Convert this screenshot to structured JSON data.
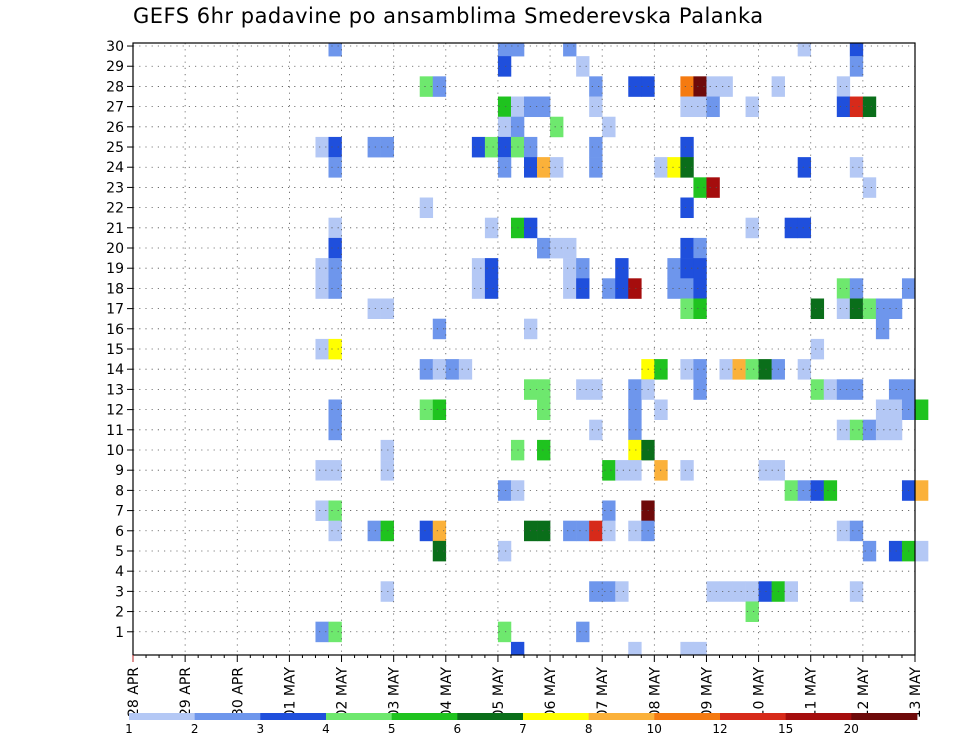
{
  "chart_data": {
    "type": "heatmap",
    "title": "GEFS 6hr padavine po ansamblima Smederevska Palanka",
    "y_ticks": [
      "1",
      "2",
      "3",
      "4",
      "5",
      "6",
      "7",
      "8",
      "9",
      "10",
      "11",
      "12",
      "13",
      "14",
      "15",
      "16",
      "17",
      "18",
      "19",
      "20",
      "21",
      "22",
      "23",
      "24",
      "25",
      "26",
      "27",
      "28",
      "29",
      "30"
    ],
    "ylim": [
      0,
      30
    ],
    "x_tick_labels": [
      "28 APR",
      "29 APR",
      "30 APR",
      "01 MAY",
      "02 MAY",
      "03 MAY",
      "04 MAY",
      "05 MAY",
      "06 MAY",
      "07 MAY",
      "08 MAY",
      "09 MAY",
      "10 MAY",
      "11 MAY",
      "12 MAY",
      "13 MAY"
    ],
    "time_steps": 60,
    "grid": true,
    "colorbar": {
      "labels": [
        "1",
        "2",
        "3",
        "4",
        "5",
        "6",
        "7",
        "8",
        "10",
        "12",
        "15",
        "20"
      ],
      "colors": [
        "#b4c8f5",
        "#6e96ec",
        "#1f4fdc",
        "#6ee86e",
        "#1fc31f",
        "#0a6e1a",
        "#ffff00",
        "#fbb13a",
        "#f57a10",
        "#d72a1a",
        "#a50d0d",
        "#6e0a0a"
      ]
    },
    "cells": [
      [
        15,
        30,
        2
      ],
      [
        28,
        30,
        2
      ],
      [
        29,
        30,
        2
      ],
      [
        33,
        30,
        2
      ],
      [
        51,
        30,
        1
      ],
      [
        55,
        30,
        3
      ],
      [
        28,
        29,
        3
      ],
      [
        34,
        29,
        1
      ],
      [
        55,
        29,
        2
      ],
      [
        22,
        28,
        4
      ],
      [
        23,
        28,
        2
      ],
      [
        35,
        28,
        2
      ],
      [
        38,
        28,
        3
      ],
      [
        39,
        28,
        3
      ],
      [
        42,
        28,
        9
      ],
      [
        43,
        28,
        12
      ],
      [
        44,
        28,
        1
      ],
      [
        45,
        28,
        1
      ],
      [
        49,
        28,
        1
      ],
      [
        54,
        28,
        1
      ],
      [
        28,
        27,
        5
      ],
      [
        29,
        27,
        1
      ],
      [
        30,
        27,
        2
      ],
      [
        31,
        27,
        2
      ],
      [
        35,
        27,
        1
      ],
      [
        42,
        27,
        1
      ],
      [
        43,
        27,
        1
      ],
      [
        44,
        27,
        2
      ],
      [
        47,
        27,
        1
      ],
      [
        54,
        27,
        3
      ],
      [
        55,
        27,
        10
      ],
      [
        56,
        27,
        6
      ],
      [
        28,
        26,
        1
      ],
      [
        29,
        26,
        2
      ],
      [
        32,
        26,
        4
      ],
      [
        36,
        26,
        1
      ],
      [
        14,
        25,
        1
      ],
      [
        15,
        25,
        3
      ],
      [
        18,
        25,
        2
      ],
      [
        19,
        25,
        2
      ],
      [
        26,
        25,
        3
      ],
      [
        27,
        25,
        4
      ],
      [
        28,
        25,
        3
      ],
      [
        29,
        25,
        4
      ],
      [
        30,
        25,
        2
      ],
      [
        35,
        25,
        2
      ],
      [
        42,
        25,
        3
      ],
      [
        15,
        24,
        2
      ],
      [
        28,
        24,
        2
      ],
      [
        30,
        24,
        3
      ],
      [
        31,
        24,
        8
      ],
      [
        32,
        24,
        1
      ],
      [
        35,
        24,
        2
      ],
      [
        40,
        24,
        1
      ],
      [
        41,
        24,
        7
      ],
      [
        42,
        24,
        6
      ],
      [
        51,
        24,
        3
      ],
      [
        55,
        24,
        1
      ],
      [
        43,
        23,
        5
      ],
      [
        44,
        23,
        11
      ],
      [
        56,
        23,
        1
      ],
      [
        22,
        22,
        1
      ],
      [
        42,
        22,
        3
      ],
      [
        15,
        21,
        1
      ],
      [
        27,
        21,
        1
      ],
      [
        29,
        21,
        5
      ],
      [
        30,
        21,
        3
      ],
      [
        47,
        21,
        1
      ],
      [
        50,
        21,
        3
      ],
      [
        51,
        21,
        3
      ],
      [
        15,
        20,
        3
      ],
      [
        31,
        20,
        2
      ],
      [
        32,
        20,
        1
      ],
      [
        33,
        20,
        1
      ],
      [
        42,
        20,
        3
      ],
      [
        43,
        20,
        2
      ],
      [
        14,
        19,
        1
      ],
      [
        15,
        19,
        2
      ],
      [
        26,
        19,
        1
      ],
      [
        27,
        19,
        3
      ],
      [
        33,
        19,
        1
      ],
      [
        34,
        19,
        2
      ],
      [
        37,
        19,
        3
      ],
      [
        41,
        19,
        2
      ],
      [
        42,
        19,
        3
      ],
      [
        43,
        19,
        3
      ],
      [
        14,
        18,
        1
      ],
      [
        15,
        18,
        2
      ],
      [
        26,
        18,
        1
      ],
      [
        27,
        18,
        3
      ],
      [
        33,
        18,
        1
      ],
      [
        34,
        18,
        3
      ],
      [
        36,
        18,
        2
      ],
      [
        37,
        18,
        3
      ],
      [
        38,
        18,
        11
      ],
      [
        41,
        18,
        2
      ],
      [
        42,
        18,
        2
      ],
      [
        43,
        18,
        3
      ],
      [
        54,
        18,
        4
      ],
      [
        55,
        18,
        2
      ],
      [
        59,
        18,
        2
      ],
      [
        18,
        17,
        1
      ],
      [
        19,
        17,
        1
      ],
      [
        42,
        17,
        4
      ],
      [
        43,
        17,
        5
      ],
      [
        52,
        17,
        6
      ],
      [
        54,
        17,
        1
      ],
      [
        55,
        17,
        6
      ],
      [
        56,
        17,
        4
      ],
      [
        57,
        17,
        2
      ],
      [
        58,
        17,
        2
      ],
      [
        23,
        16,
        2
      ],
      [
        30,
        16,
        1
      ],
      [
        57,
        16,
        2
      ],
      [
        14,
        15,
        1
      ],
      [
        15,
        15,
        7
      ],
      [
        52,
        15,
        1
      ],
      [
        22,
        14,
        2
      ],
      [
        23,
        14,
        1
      ],
      [
        24,
        14,
        2
      ],
      [
        25,
        14,
        1
      ],
      [
        39,
        14,
        7
      ],
      [
        40,
        14,
        5
      ],
      [
        42,
        14,
        1
      ],
      [
        43,
        14,
        2
      ],
      [
        45,
        14,
        1
      ],
      [
        46,
        14,
        8
      ],
      [
        47,
        14,
        4
      ],
      [
        48,
        14,
        6
      ],
      [
        49,
        14,
        2
      ],
      [
        51,
        14,
        1
      ],
      [
        30,
        13,
        4
      ],
      [
        31,
        13,
        4
      ],
      [
        34,
        13,
        1
      ],
      [
        35,
        13,
        1
      ],
      [
        38,
        13,
        2
      ],
      [
        39,
        13,
        1
      ],
      [
        43,
        13,
        2
      ],
      [
        52,
        13,
        4
      ],
      [
        53,
        13,
        1
      ],
      [
        54,
        13,
        2
      ],
      [
        55,
        13,
        2
      ],
      [
        58,
        13,
        2
      ],
      [
        59,
        13,
        2
      ],
      [
        15,
        12,
        2
      ],
      [
        22,
        12,
        4
      ],
      [
        23,
        12,
        5
      ],
      [
        31,
        12,
        4
      ],
      [
        38,
        12,
        2
      ],
      [
        40,
        12,
        1
      ],
      [
        57,
        12,
        1
      ],
      [
        58,
        12,
        1
      ],
      [
        59,
        12,
        2
      ],
      [
        60,
        12,
        5
      ],
      [
        15,
        11,
        2
      ],
      [
        35,
        11,
        1
      ],
      [
        38,
        11,
        2
      ],
      [
        54,
        11,
        1
      ],
      [
        55,
        11,
        4
      ],
      [
        56,
        11,
        2
      ],
      [
        57,
        11,
        1
      ],
      [
        58,
        11,
        1
      ],
      [
        19,
        10,
        1
      ],
      [
        29,
        10,
        4
      ],
      [
        31,
        10,
        5
      ],
      [
        38,
        10,
        7
      ],
      [
        39,
        10,
        6
      ],
      [
        14,
        9,
        1
      ],
      [
        15,
        9,
        1
      ],
      [
        19,
        9,
        1
      ],
      [
        36,
        9,
        5
      ],
      [
        37,
        9,
        1
      ],
      [
        38,
        9,
        1
      ],
      [
        40,
        9,
        8
      ],
      [
        42,
        9,
        1
      ],
      [
        48,
        9,
        1
      ],
      [
        49,
        9,
        1
      ],
      [
        28,
        8,
        2
      ],
      [
        29,
        8,
        1
      ],
      [
        50,
        8,
        4
      ],
      [
        51,
        8,
        2
      ],
      [
        52,
        8,
        3
      ],
      [
        53,
        8,
        5
      ],
      [
        59,
        8,
        3
      ],
      [
        60,
        8,
        8
      ],
      [
        14,
        7,
        1
      ],
      [
        15,
        7,
        4
      ],
      [
        36,
        7,
        2
      ],
      [
        39,
        7,
        12
      ],
      [
        15,
        6,
        1
      ],
      [
        18,
        6,
        2
      ],
      [
        19,
        6,
        5
      ],
      [
        22,
        6,
        3
      ],
      [
        23,
        6,
        8
      ],
      [
        30,
        6,
        6
      ],
      [
        31,
        6,
        6
      ],
      [
        33,
        6,
        2
      ],
      [
        34,
        6,
        2
      ],
      [
        35,
        6,
        10
      ],
      [
        36,
        6,
        1
      ],
      [
        38,
        6,
        1
      ],
      [
        39,
        6,
        2
      ],
      [
        54,
        6,
        1
      ],
      [
        55,
        6,
        2
      ],
      [
        23,
        5,
        6
      ],
      [
        28,
        5,
        1
      ],
      [
        56,
        5,
        2
      ],
      [
        58,
        5,
        3
      ],
      [
        59,
        5,
        5
      ],
      [
        60,
        5,
        1
      ],
      [
        19,
        3,
        1
      ],
      [
        35,
        3,
        2
      ],
      [
        36,
        3,
        2
      ],
      [
        37,
        3,
        1
      ],
      [
        44,
        3,
        1
      ],
      [
        45,
        3,
        1
      ],
      [
        46,
        3,
        1
      ],
      [
        47,
        3,
        1
      ],
      [
        48,
        3,
        3
      ],
      [
        49,
        3,
        5
      ],
      [
        50,
        3,
        1
      ],
      [
        55,
        3,
        1
      ],
      [
        47,
        2,
        4
      ],
      [
        14,
        1,
        2
      ],
      [
        15,
        1,
        4
      ],
      [
        28,
        1,
        4
      ],
      [
        34,
        1,
        2
      ],
      [
        29,
        0,
        3
      ],
      [
        38,
        0,
        1
      ],
      [
        42,
        0,
        1
      ],
      [
        43,
        0,
        1
      ]
    ]
  }
}
